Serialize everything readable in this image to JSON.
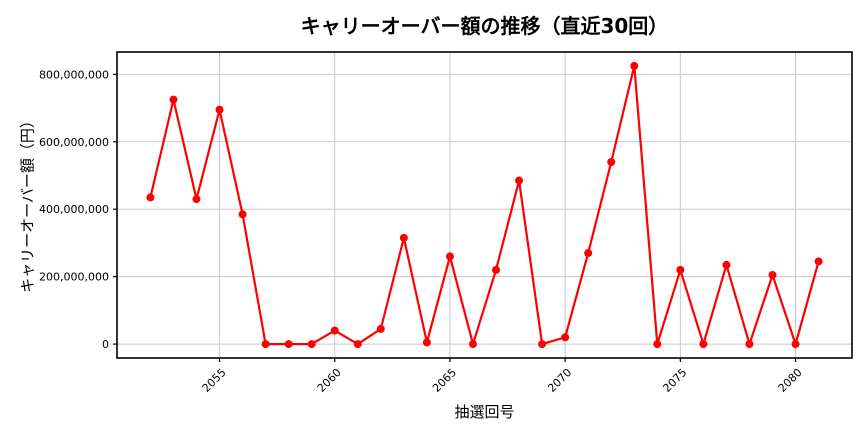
{
  "chart_data": {
    "type": "line",
    "title": "キャリーオーバー額の推移（直近30回）",
    "xlabel": "抽選回号",
    "ylabel": "キャリーオーバー額（円）",
    "series_name": "キャリーオーバー額",
    "x": [
      2052,
      2053,
      2054,
      2055,
      2056,
      2057,
      2058,
      2059,
      2060,
      2061,
      2062,
      2063,
      2064,
      2065,
      2066,
      2067,
      2068,
      2069,
      2070,
      2071,
      2072,
      2073,
      2074,
      2075,
      2076,
      2077,
      2078,
      2079,
      2080,
      2081
    ],
    "y": [
      435000000,
      725000000,
      430000000,
      695000000,
      385000000,
      0,
      0,
      0,
      40000000,
      0,
      45000000,
      315000000,
      5000000,
      260000000,
      0,
      220000000,
      485000000,
      0,
      20000000,
      270000000,
      540000000,
      825000000,
      0,
      220000000,
      0,
      235000000,
      0,
      205000000,
      0,
      245000000
    ],
    "xticks": {
      "values": [
        2055,
        2060,
        2065,
        2070,
        2075,
        2080
      ],
      "labels": [
        "2055",
        "2060",
        "2065",
        "2070",
        "2075",
        "2080"
      ]
    },
    "yticks": {
      "values": [
        0,
        200000000,
        400000000,
        600000000,
        800000000
      ],
      "labels": [
        "0",
        "200,000,000",
        "400,000,000",
        "600,000,000",
        "800,000,000"
      ]
    },
    "xlim": [
      2050.55,
      2082.45
    ],
    "ylim": [
      -41250000,
      866250000
    ],
    "x_tick_rotation": 45,
    "grid": true,
    "legend_position": "none",
    "line_color": "#ff0000",
    "marker": "circle",
    "grid_color": "#c8c8c8",
    "spine_color": "#000000",
    "background_color": "#ffffff"
  }
}
